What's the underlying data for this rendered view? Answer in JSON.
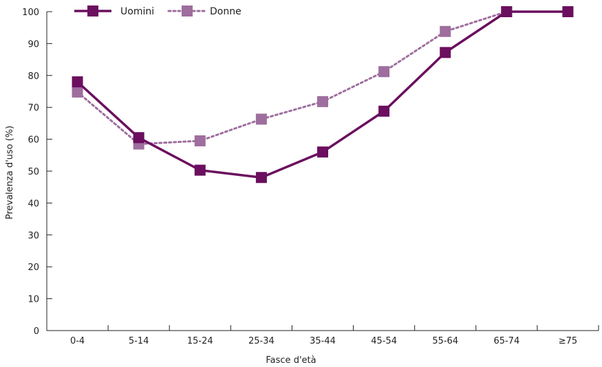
{
  "chart_data": {
    "type": "line",
    "title": "",
    "xlabel": "Fasce d'età",
    "ylabel": "Prevalenza d'uso (%)",
    "categories": [
      "0-4",
      "5-14",
      "15-24",
      "25-34",
      "35-44",
      "45-54",
      "55-64",
      "65-74",
      "≥75"
    ],
    "ylim": [
      0,
      100
    ],
    "yticks": [
      0,
      10,
      20,
      30,
      40,
      50,
      60,
      70,
      80,
      90,
      100
    ],
    "grid": false,
    "legend_position": "top-left",
    "series": [
      {
        "name": "Uomini",
        "values": [
          78,
          60.5,
          50.3,
          48,
          56,
          68.8,
          87.2,
          100,
          100
        ],
        "color": "#6b0f5e",
        "line_style": "solid"
      },
      {
        "name": "Donne",
        "values": [
          74.8,
          58.5,
          59.5,
          66.3,
          71.8,
          81.2,
          93.8,
          100,
          100
        ],
        "color": "#9e6e9e",
        "line_style": "dotted"
      }
    ]
  }
}
